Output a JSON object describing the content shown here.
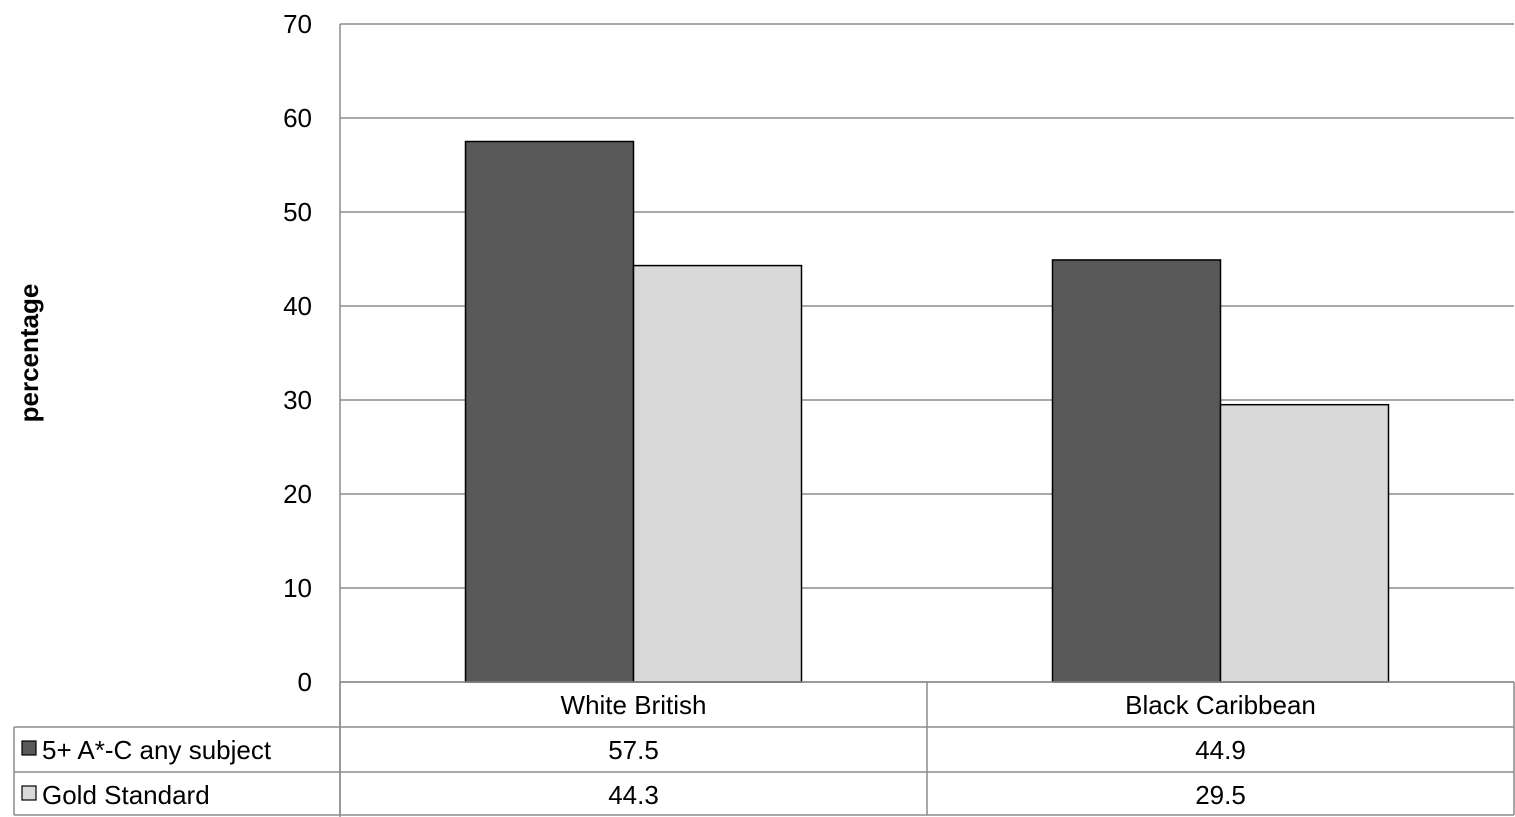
{
  "chart_data": {
    "type": "bar",
    "title": "",
    "xlabel": "",
    "ylabel": "percentage",
    "ylim": [
      0,
      70
    ],
    "yticks": [
      "0",
      "10",
      "20",
      "30",
      "40",
      "50",
      "60",
      "70"
    ],
    "grid": true,
    "legend": "data-table-left",
    "categories": [
      "White British",
      "Black Caribbean"
    ],
    "series": [
      {
        "name": "5+ A*-C any subject",
        "values": [
          57.5,
          44.9
        ],
        "labels": [
          "57.5",
          "44.9"
        ],
        "color": "#595959"
      },
      {
        "name": "Gold Standard",
        "values": [
          44.3,
          29.5
        ],
        "labels": [
          "44.3",
          "29.5"
        ],
        "color": "#d9d9d9"
      }
    ]
  }
}
